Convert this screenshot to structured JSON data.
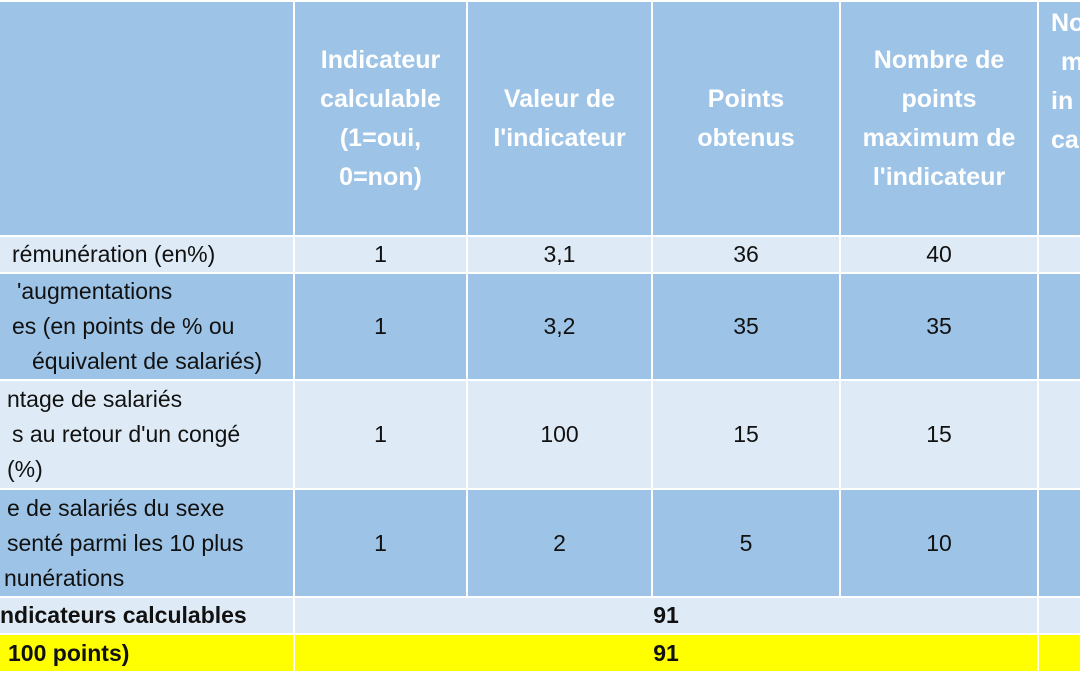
{
  "headers": {
    "label": "",
    "calculable": "Indicateur calculable (1=oui, 0=non)",
    "value": "Valeur de l'indicateur",
    "points": "Points obtenus",
    "max": "Nombre de points maximum de l'indicateur",
    "extra_lines": [
      "No",
      "m",
      "",
      "in",
      "ca"
    ]
  },
  "rows": [
    {
      "label_lines": [
        "rémunération (en%)"
      ],
      "calculable": "1",
      "value": "3,1",
      "points": "36",
      "max": "40"
    },
    {
      "label_lines": [
        "'augmentations",
        "es (en points de % ou",
        "équivalent de salariés)"
      ],
      "calculable": "1",
      "value": "3,2",
      "points": "35",
      "max": "35"
    },
    {
      "label_lines": [
        "ntage de salariés",
        "s au retour d'un congé",
        "(%)"
      ],
      "calculable": "1",
      "value": "100",
      "points": "15",
      "max": "15"
    },
    {
      "label_lines": [
        "e de salariés du sexe",
        "senté parmi les 10 plus",
        "nunérations"
      ],
      "calculable": "1",
      "value": "2",
      "points": "5",
      "max": "10"
    }
  ],
  "total_row": {
    "label": "ndicateurs calculables",
    "value": "91"
  },
  "final_row": {
    "label": "100 points)",
    "value": "91"
  }
}
